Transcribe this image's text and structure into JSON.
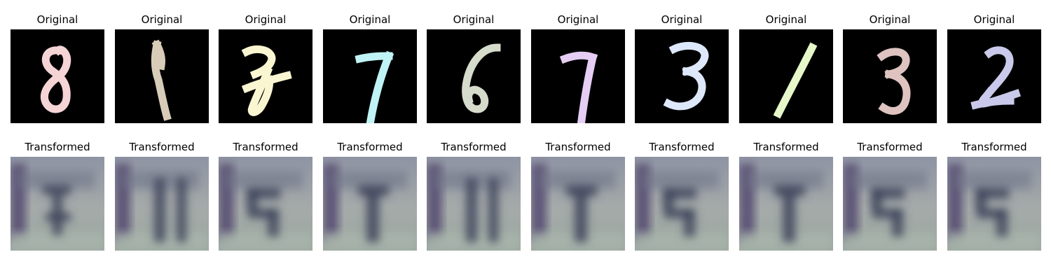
{
  "rows": [
    {
      "label": "Original",
      "kind": "original",
      "panels": [
        {
          "title": "Original",
          "digit": "8",
          "color": "#f5d4d6"
        },
        {
          "title": "Original",
          "digit": "1",
          "color": "#d8ccb8"
        },
        {
          "title": "Original",
          "digit": "7",
          "color": "#fbf6d2"
        },
        {
          "title": "Original",
          "digit": "7",
          "color": "#bff3f6"
        },
        {
          "title": "Original",
          "digit": "6",
          "color": "#d5dccb"
        },
        {
          "title": "Original",
          "digit": "7",
          "color": "#e6cdf3"
        },
        {
          "title": "Original",
          "digit": "3",
          "color": "#dde8fb"
        },
        {
          "title": "Original",
          "digit": "1",
          "color": "#e6f7c9"
        },
        {
          "title": "Original",
          "digit": "3",
          "color": "#dec3c1"
        },
        {
          "title": "Original",
          "digit": "2",
          "color": "#c9c9eb"
        }
      ]
    },
    {
      "label": "Transformed",
      "kind": "transformed",
      "panels": [
        {
          "title": "Transformed",
          "glyph": "8"
        },
        {
          "title": "Transformed",
          "glyph": "11"
        },
        {
          "title": "Transformed",
          "glyph": "5"
        },
        {
          "title": "Transformed",
          "glyph": "1"
        },
        {
          "title": "Transformed",
          "glyph": "11"
        },
        {
          "title": "Transformed",
          "glyph": "1"
        },
        {
          "title": "Transformed",
          "glyph": "5"
        },
        {
          "title": "Transformed",
          "glyph": "1"
        },
        {
          "title": "Transformed",
          "glyph": "5"
        },
        {
          "title": "Transformed",
          "glyph": "5"
        }
      ]
    }
  ]
}
